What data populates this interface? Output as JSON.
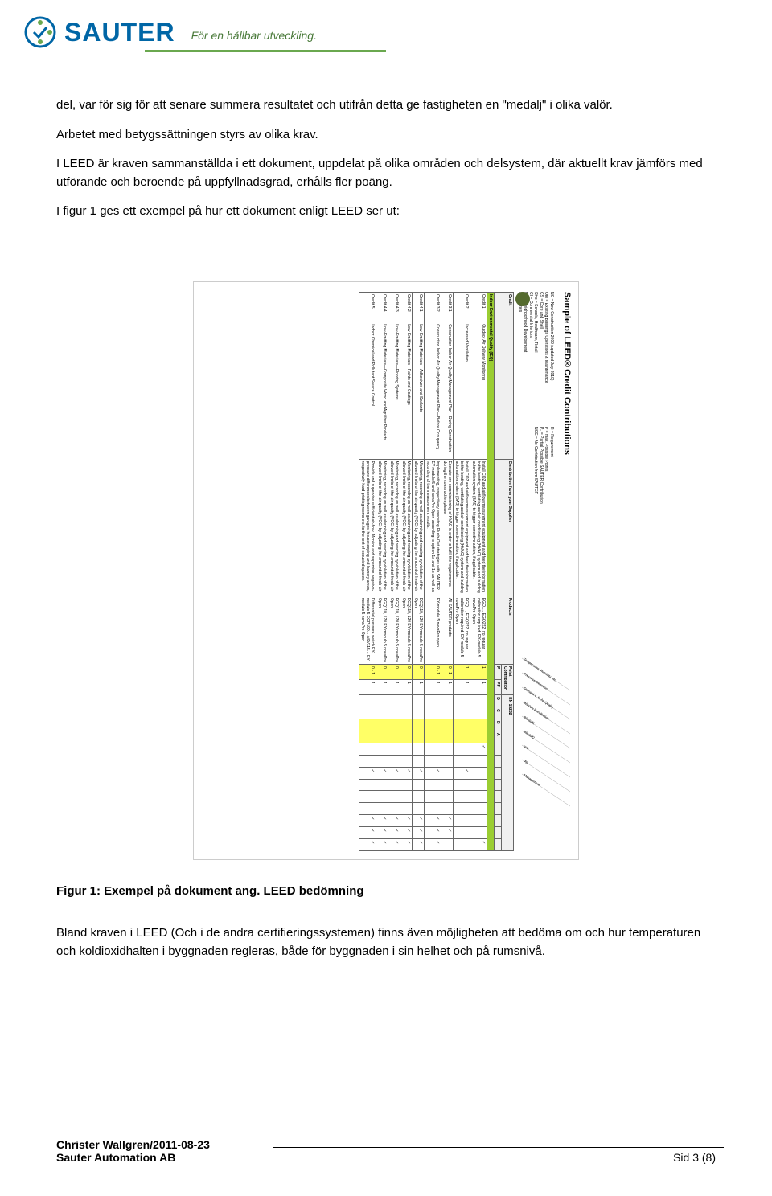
{
  "header": {
    "logo_text": "SAUTER",
    "tagline": "För en hållbar utveckling.",
    "logo_color": "#0066a6",
    "tagline_color": "#4a7a3a",
    "underline_color": "#6aa84f"
  },
  "paragraphs": {
    "p1": "del, var för sig för att senare summera resultatet och utifrån detta ge fastigheten en \"medalj\" i olika valör.",
    "p2": "Arbetet med betygssättningen styrs av olika krav.",
    "p3": "I LEED är kraven sammanställda i ett dokument, uppdelat på olika områden och delsystem, där aktuellt krav jämförs med utförande och beroende på uppfyllnadsgrad, erhålls fler poäng.",
    "p4": "I figur 1 ges ett exempel på hur ett dokument enligt LEED ser ut:"
  },
  "figure": {
    "doc_title": "Sample of LEED® Credit Contributions",
    "legend_left": [
      "NC = New Construction 2009 (updated July 2010)",
      "OM = Existing Buildings Operations & Maintenance",
      "CS = Core and Shell",
      "SHc = Schools, Healthcare, Retail",
      "CI = Commercial Interiors",
      "ND = Neighborhood Development",
      "H = Homes"
    ],
    "legend_right": [
      "R = Requirement",
      "P = max. Possible Points",
      "P.. = Partial Possible SAUTER Contribution",
      "NCE = No Contribution from SAUTER"
    ],
    "table": {
      "columnGroups": [
        "Credit",
        "",
        "Contribution from your Supplier",
        "Products",
        "Point Contribution",
        "EN 15232",
        "Room VDI 3813"
      ],
      "pointCols": [
        "P",
        "PP"
      ],
      "enCols": [
        "D",
        "C",
        "B",
        "A"
      ],
      "roomHeaders": [
        "Temperature, Humidity, etc.",
        "Presence Detection",
        "Demand o. B. Air Quality",
        "Window Recollection",
        "Blinds/f1",
        "Blinds/f2",
        "ana",
        "dig",
        "Management"
      ],
      "section_header": "Indoor Environmental Quality (IEQ)",
      "section_bg": "#9acd32",
      "highlight_bg": "#ffff66",
      "rows": [
        {
          "credit": "Credit 1",
          "name": "Outdoor Air Delivery Monitoring",
          "contrib": "Install CO2 and airflow measurement equipment and feed the information to the heating, ventilating and air conditioning (HVAC) system and building automation system (BAS) to trigger corrective action, if applicable.",
          "products": "EGQ…, EGQ222: no regular calibration required. EY-modulo 5 novaPro Open",
          "p": "1",
          "pp": "1",
          "en": [
            "",
            "",
            "",
            ""
          ],
          "room": [
            "✓",
            "",
            "",
            "",
            "",
            "",
            "",
            "",
            "✓"
          ]
        },
        {
          "credit": "Credit 2",
          "name": "Increased Ventilation",
          "contrib": "Install CO2 and airflow measurement equipment and feed the information to the heating, ventilating and air conditioning (HVAC) system and building automation system (BAS) to trigger corrective action, if applicable.",
          "products": "EGQ…, EGQ222: no regular calibration required. EY-modulo 5 novaPro Open",
          "p": "1",
          "pp": "1",
          "en": [
            "",
            "",
            "",
            ""
          ],
          "room": [
            "",
            "",
            "✓",
            "",
            "",
            "",
            "",
            "",
            ""
          ]
        },
        {
          "credit": "Credit 3.1",
          "name": "Construction Indoor Air Quality Management Plan—During Construction",
          "contrib": "Execute pre-commissioning of HVAC in order to fulfill the requirements during the construction phase.",
          "products": "All SAUTER products",
          "p": "0 - 1",
          "pp": "1",
          "en": [
            "",
            "",
            "",
            ""
          ],
          "room": [
            "",
            "",
            "",
            "",
            "",
            "",
            "✓",
            "✓",
            ""
          ]
        },
        {
          "credit": "Credit 3.2",
          "name": "Construction Indoor Air Quality Management Plan—Before Occupancy",
          "contrib": "Implementing, respectively executing Flush-Out strategies with SAUTER EY-modulo 5 and novaPro Open according to option 1a and 1b as well as recording of the measurement results.",
          "products": "EY-modulo 5 novaPro open",
          "p": "0 - 1",
          "pp": "1",
          "en": [
            "",
            "",
            "",
            ""
          ],
          "room": [
            "",
            "",
            "✓",
            "",
            "",
            "",
            "✓",
            "✓",
            "✓"
          ]
        },
        {
          "credit": "Credit 4.1",
          "name": "Low-Emitting Materials—Adhesives and Sealants",
          "contrib": "Monitoring, recording as well as alarming and reacting by violation of the allowed limits of the air quality (VOC) by adjusting the amount of fresh-air",
          "products": "EGQ110, 120 EY-modulo 5 novaPro Open",
          "p": "0",
          "pp": "1",
          "en": [
            "",
            "",
            "",
            ""
          ],
          "room": [
            "",
            "",
            "✓",
            "",
            "",
            "",
            "✓",
            "✓",
            "✓"
          ]
        },
        {
          "credit": "Credit 4.2",
          "name": "Low-Emitting Materials—Paints and Coatings",
          "contrib": "Monitoring, recording as well as alarming and reacting by violation of the allowed limits of the air quality (VOC) by adjusting the amount of fresh-air",
          "products": "EGQ110, 120 EY-modulo 5 novaPro Open",
          "p": "0",
          "pp": "1",
          "en": [
            "",
            "",
            "",
            ""
          ],
          "room": [
            "",
            "",
            "✓",
            "",
            "",
            "",
            "✓",
            "✓",
            "✓"
          ]
        },
        {
          "credit": "Credit 4.3",
          "name": "Low-Emitting Materials—Flooring Systems",
          "contrib": "Monitoring, recording as well as alarming and reacting by violation of the allowed limits of the air quality (VOC) by adjusting the amount of fresh-air",
          "products": "EGQ110, 120 EY-modulo 5 novaPro Open",
          "p": "0",
          "pp": "1",
          "en": [
            "",
            "",
            "",
            ""
          ],
          "room": [
            "",
            "",
            "✓",
            "",
            "",
            "",
            "✓",
            "✓",
            "✓"
          ]
        },
        {
          "credit": "Credit 4.4",
          "name": "Low-Emitting Materials—Composite Wood and Agrifiber Products",
          "contrib": "Monitoring, recording as well as alarming and reacting by violation of the allowed limits of the air quality (VOC) by adjusting the amount of fresh-air",
          "products": "EGQ110, 120 EY-modulo 5 novaPro Open",
          "p": "0",
          "pp": "1",
          "en": [
            "",
            "",
            "",
            ""
          ],
          "room": [
            "",
            "",
            "✓",
            "",
            "",
            "",
            "✓",
            "✓",
            "✓"
          ]
        },
        {
          "credit": "Credit 5",
          "name": "Indoor Chemical and Pollutant Source Control",
          "contrib": "Provide and supervise sufficient air-flow. Monitor and supervise negative-pressure-differences between garages, housekeeping and laundry areas, respectively hard printing rooms etc. to the rest of occupied spaces.",
          "products": "Differential pressure switch EY-modulo 5 EGP100… ASV115… EY-modulo 5 novaPro Open",
          "p": "0 - 1",
          "pp": "1",
          "en": [
            "",
            "",
            "",
            ""
          ],
          "room": [
            "",
            "",
            "✓",
            "",
            "",
            "",
            "✓",
            "✓",
            "✓"
          ]
        }
      ]
    }
  },
  "figure_caption": "Figur 1: Exempel på dokument ang. LEED bedömning",
  "body2": "Bland kraven i LEED (Och i de andra certifieringssystemen) finns även möjligheten att bedöma om och hur temperaturen och koldioxidhalten i byggnaden regleras, både för byggnaden i sin helhet och på rumsnivå.",
  "footer": {
    "author": "Christer Wallgren/2011-08-23",
    "company": "Sauter Automation AB",
    "page": "Sid 3 (8)"
  }
}
